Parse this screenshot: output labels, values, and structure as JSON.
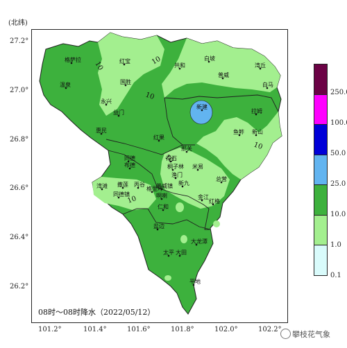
{
  "map": {
    "lat_unit": "(北纬)",
    "lat_ticks": [
      "27.2°",
      "27.0°",
      "26.8°",
      "26.6°",
      "26.4°",
      "26.2°"
    ],
    "lon_ticks": [
      "101.2°",
      "101.4°",
      "101.6°",
      "101.8°",
      "102.0°",
      "102.2°"
    ],
    "caption": "08时～08时降水（2022/05/12）",
    "contour_label": "10",
    "colors": {
      "light_green": "#a3ef8f",
      "medium_green": "#3db13d",
      "light_blue": "#62b4f0",
      "boundary": "#1f1f1f"
    },
    "places": [
      {
        "name": "格萨拉"
      },
      {
        "name": "红宝"
      },
      {
        "name": "共和"
      },
      {
        "name": "白坡"
      },
      {
        "name": "普威"
      },
      {
        "name": "湾丘"
      },
      {
        "name": "国胜"
      },
      {
        "name": "温泉"
      },
      {
        "name": "白马"
      },
      {
        "name": "永兴"
      },
      {
        "name": "新建"
      },
      {
        "name": "益门"
      },
      {
        "name": "惠民"
      },
      {
        "name": "红果"
      },
      {
        "name": "拉姆"
      },
      {
        "name": "鱼鲊"
      },
      {
        "name": "新山"
      },
      {
        "name": "那关"
      },
      {
        "name": "米易"
      },
      {
        "name": "同德"
      },
      {
        "name": "布德"
      },
      {
        "name": "得石"
      },
      {
        "name": "总营"
      },
      {
        "name": "湾滩"
      },
      {
        "name": "撒莲"
      },
      {
        "name": "丙谷"
      },
      {
        "name": "普威镇"
      },
      {
        "name": "新九"
      },
      {
        "name": "仁和"
      },
      {
        "name": "红格"
      },
      {
        "name": "金江"
      },
      {
        "name": "平地"
      },
      {
        "name": "大龙潭"
      },
      {
        "name": "太平"
      },
      {
        "name": "大田"
      },
      {
        "name": "啊喇"
      },
      {
        "name": "同德镇"
      },
      {
        "name": "格里坪"
      },
      {
        "name": "盐边"
      },
      {
        "name": "渔门"
      },
      {
        "name": "桐子林"
      }
    ]
  },
  "legend": {
    "colors": [
      "#6b0245",
      "#ff00ff",
      "#0000d8",
      "#62b4f0",
      "#3db13d",
      "#a3ef8f",
      "#d9fbfb"
    ],
    "labels": [
      "250.0",
      "100.0",
      "50.0",
      "25.0",
      "10.0",
      "1.0",
      "0.1"
    ]
  },
  "watermark": "攀枝花气象"
}
